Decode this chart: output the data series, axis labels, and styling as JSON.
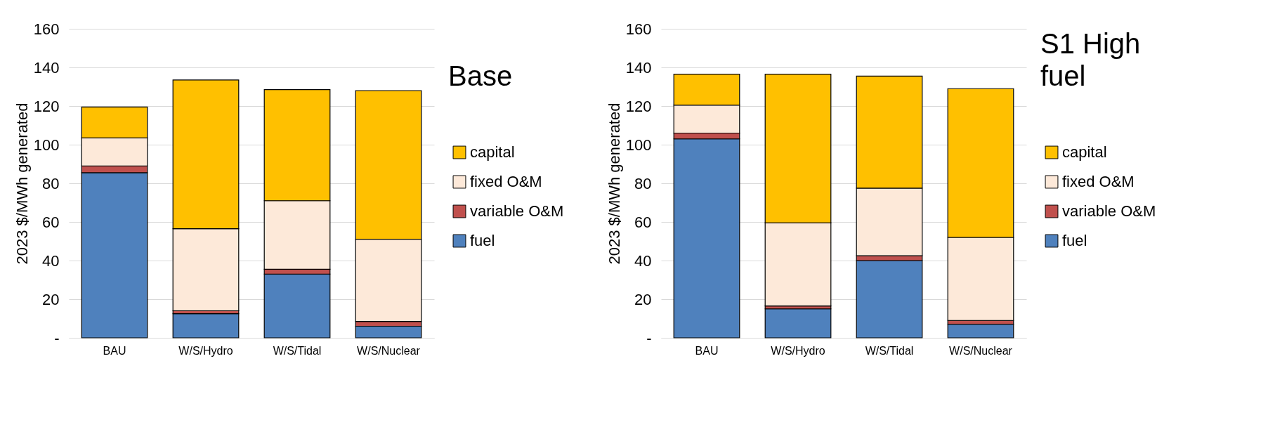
{
  "chart_data": [
    {
      "type": "bar",
      "title": "Base",
      "ylabel": "2023 $/MWh generated",
      "stacked": true,
      "categories": [
        "BAU",
        "W/S/Hydro",
        "W/S/Tidal",
        "W/S/Nuclear"
      ],
      "series": [
        {
          "name": "fuel",
          "color": "#4f81bd",
          "values": [
            85.5,
            12.5,
            33,
            6
          ]
        },
        {
          "name": "variable O&M",
          "color": "#c0504d",
          "values": [
            3.5,
            1.5,
            2.5,
            2.5
          ]
        },
        {
          "name": "fixed O&M",
          "color": "#fde9d9",
          "values": [
            14.5,
            42.5,
            35.5,
            42.5
          ]
        },
        {
          "name": "capital",
          "color": "#ffc000",
          "values": [
            16,
            77,
            57.5,
            77
          ]
        }
      ],
      "ylim": [
        0,
        160
      ],
      "yticks": [
        {
          "value": 0,
          "label": "-"
        },
        20,
        40,
        60,
        80,
        100,
        120,
        140,
        160
      ],
      "grid": "y",
      "legend": "right"
    },
    {
      "type": "bar",
      "title": "S1 High fuel",
      "ylabel": "2023 $/MWh generated",
      "stacked": true,
      "categories": [
        "BAU",
        "W/S/Hydro",
        "W/S/Tidal",
        "W/S/Nuclear"
      ],
      "series": [
        {
          "name": "fuel",
          "color": "#4f81bd",
          "values": [
            103,
            15,
            40,
            7
          ]
        },
        {
          "name": "variable O&M",
          "color": "#c0504d",
          "values": [
            3,
            1.5,
            2.5,
            2
          ]
        },
        {
          "name": "fixed O&M",
          "color": "#fde9d9",
          "values": [
            14.5,
            43,
            35,
            43
          ]
        },
        {
          "name": "capital",
          "color": "#ffc000",
          "values": [
            16,
            77,
            58,
            77
          ]
        }
      ],
      "ylim": [
        0,
        160
      ],
      "yticks": [
        {
          "value": 0,
          "label": "-"
        },
        20,
        40,
        60,
        80,
        100,
        120,
        140,
        160
      ],
      "grid": "y",
      "legend": "right"
    }
  ]
}
